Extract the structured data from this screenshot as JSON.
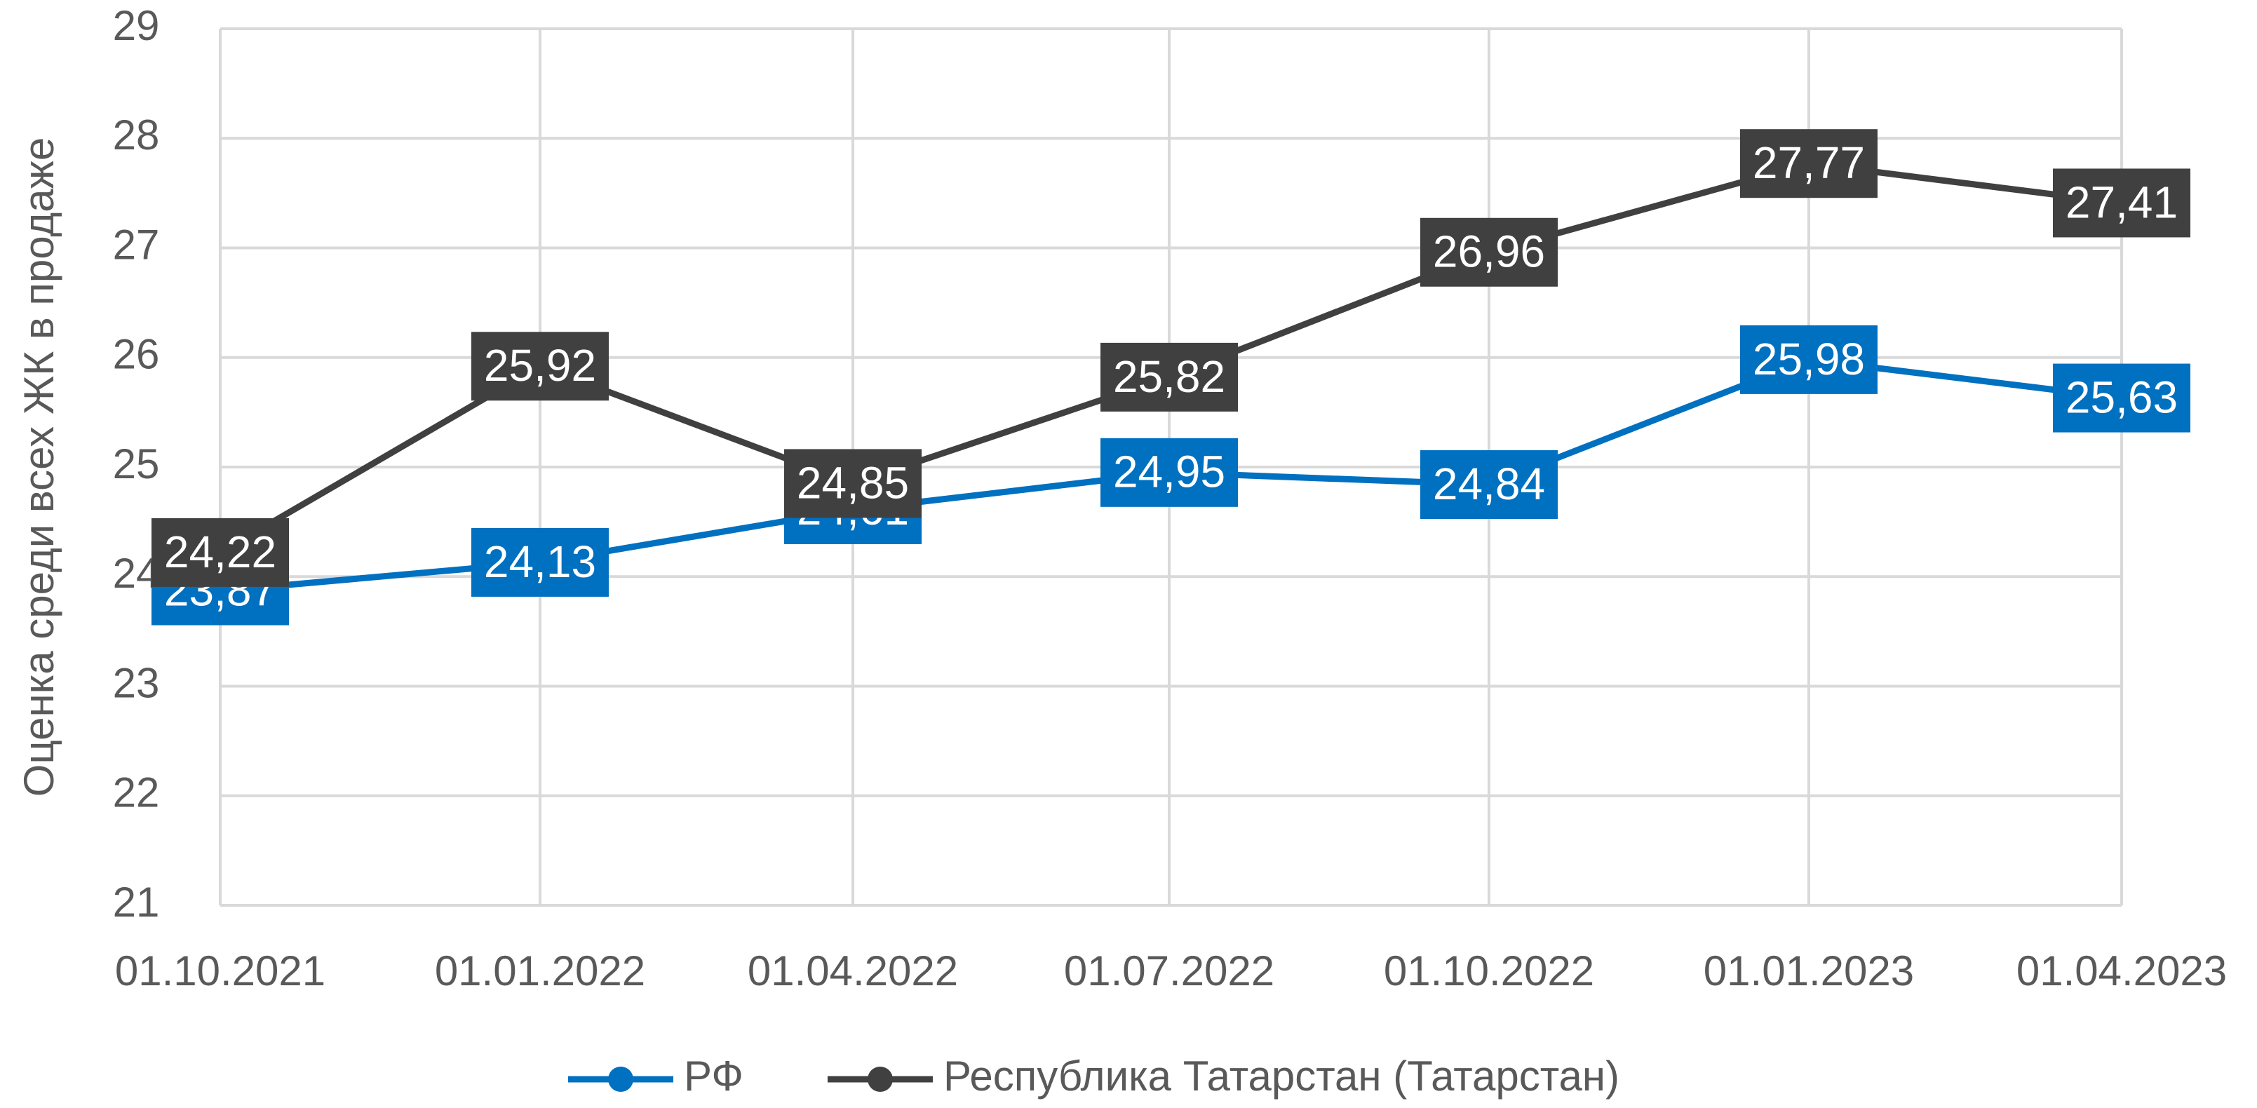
{
  "chart_data": {
    "type": "line",
    "y_label": "Оценка среди всех ЖК в продаже",
    "x": [
      "01.10.2021",
      "01.01.2022",
      "01.04.2022",
      "01.07.2022",
      "01.10.2022",
      "01.01.2023",
      "01.04.2023"
    ],
    "series": [
      {
        "name": "РФ",
        "color": "#0070c0",
        "values": [
          23.87,
          24.13,
          24.61,
          24.95,
          24.84,
          25.98,
          25.63
        ],
        "value_labels": [
          "23,87",
          "24,13",
          "24,61",
          "24,95",
          "24,84",
          "25,98",
          "25,63"
        ]
      },
      {
        "name": "Республика Татарстан (Татарстан)",
        "color": "#404040",
        "values": [
          24.22,
          25.92,
          24.85,
          25.82,
          26.96,
          27.77,
          27.41
        ],
        "value_labels": [
          "24,22",
          "25,92",
          "24,85",
          "25,82",
          "26,96",
          "27,77",
          "27,41"
        ]
      }
    ],
    "ylim": [
      21,
      29
    ],
    "yticks": [
      21,
      22,
      23,
      24,
      25,
      26,
      27,
      28,
      29
    ],
    "grid": true,
    "legend": "bottom"
  }
}
